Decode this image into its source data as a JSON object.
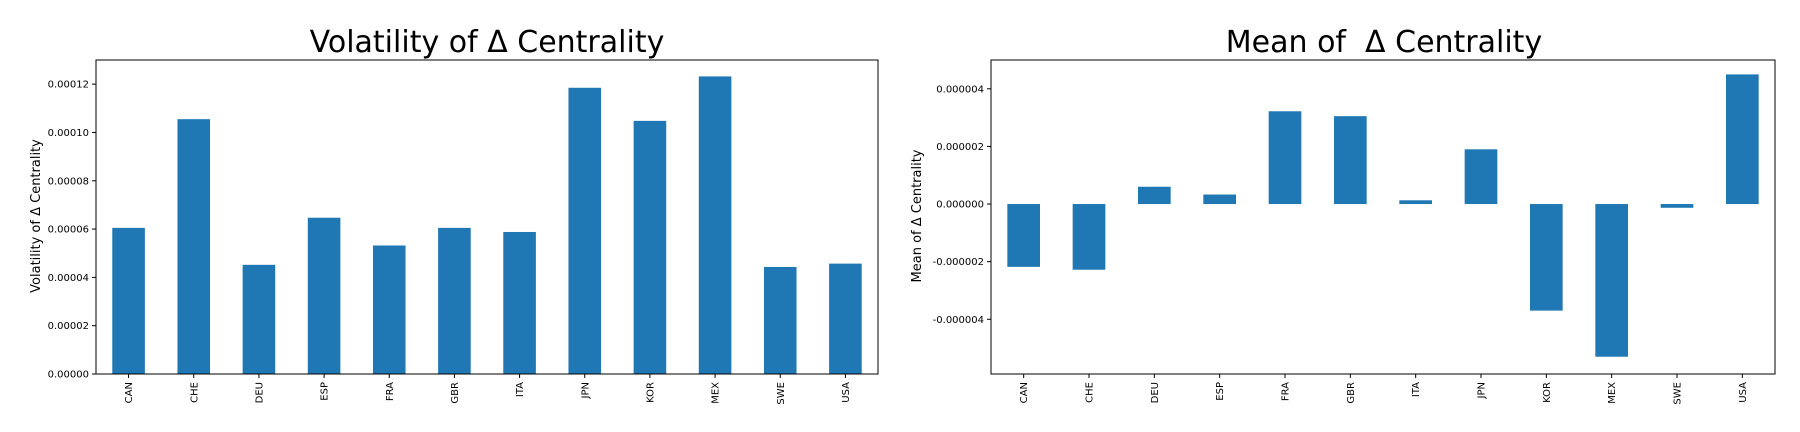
{
  "chart_data": [
    {
      "type": "bar",
      "title": "Volatility of Δ Centrality",
      "xlabel": "",
      "ylabel": "Volatility of Δ Centrality",
      "categories": [
        "CAN",
        "CHE",
        "DEU",
        "ESP",
        "FRA",
        "GBR",
        "ITA",
        "JPN",
        "KOR",
        "MEX",
        "SWE",
        "USA"
      ],
      "values": [
        6.05e-05,
        0.0001055,
        4.52e-05,
        6.47e-05,
        5.32e-05,
        6.05e-05,
        5.88e-05,
        0.0001185,
        0.0001048,
        0.0001232,
        4.43e-05,
        4.57e-05
      ],
      "ylim": [
        0,
        0.00013
      ],
      "yticks": [
        0,
        2e-05,
        4e-05,
        6e-05,
        8e-05,
        0.0001,
        0.00012
      ],
      "ytick_labels": [
        "0.00000",
        "0.00002",
        "0.00004",
        "0.00006",
        "0.00008",
        "0.00010",
        "0.00012"
      ],
      "color": "#1f77b4",
      "grid": false,
      "legend": false
    },
    {
      "type": "bar",
      "title": "Mean of  Δ Centrality",
      "xlabel": "",
      "ylabel": "Mean of Δ Centrality",
      "categories": [
        "CAN",
        "CHE",
        "DEU",
        "ESP",
        "FRA",
        "GBR",
        "ITA",
        "JPN",
        "KOR",
        "MEX",
        "SWE",
        "USA"
      ],
      "values": [
        -2.18e-06,
        -2.28e-06,
        6e-07,
        3.3e-07,
        3.22e-06,
        3.05e-06,
        1.3e-07,
        1.9e-06,
        -3.7e-06,
        -5.3e-06,
        -1.3e-07,
        4.5e-06
      ],
      "ylim": [
        -5.9e-06,
        5e-06
      ],
      "yticks": [
        -4e-06,
        -2e-06,
        0,
        2e-06,
        4e-06
      ],
      "ytick_labels": [
        "-0.000004",
        "-0.000002",
        "0.000000",
        "0.000002",
        "0.000004"
      ],
      "color": "#1f77b4",
      "grid": false,
      "legend": false
    }
  ]
}
